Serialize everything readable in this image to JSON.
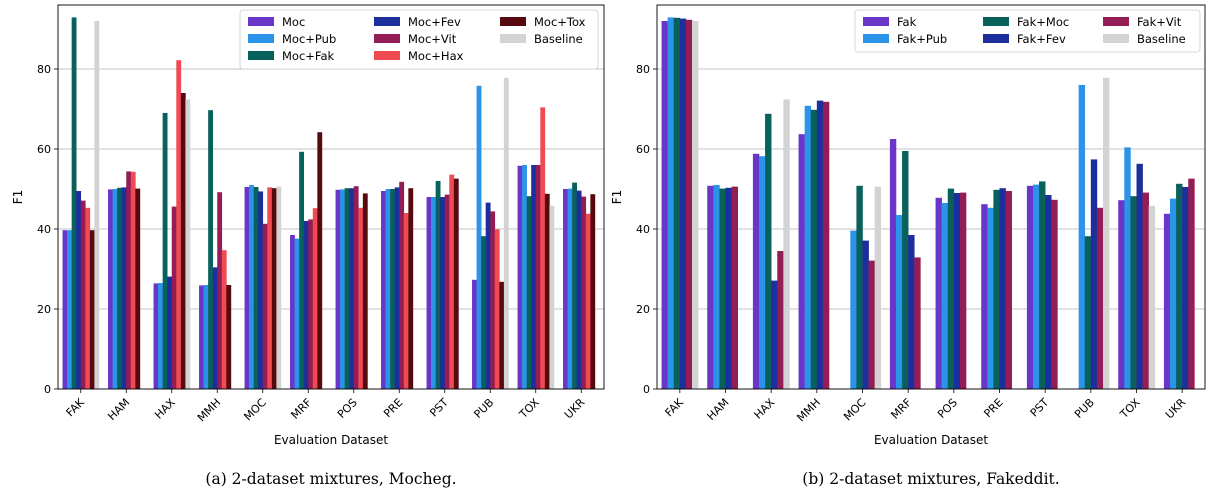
{
  "colors": {
    "Moc": "#6a35c9",
    "Moc+Pub": "#2b93e8",
    "Moc+Fak": "#08615a",
    "Moc+Fev": "#1c2f9d",
    "Moc+Vit": "#941d55",
    "Moc+Hax": "#f04b53",
    "Moc+Tox": "#560a0f",
    "Baseline": "#d3d3d3",
    "Fak": "#6a35c9",
    "Fak+Pub": "#2b93e8",
    "Fak+Moc": "#08615a",
    "Fak+Fev": "#1c2f9d",
    "Fak+Vit": "#941d55"
  },
  "chart_data": [
    {
      "type": "bar",
      "title": "",
      "caption": "(a) 2-dataset mixtures, Mocheg.",
      "xlabel": "Evaluation Dataset",
      "ylabel": "F1",
      "ylim": [
        0,
        96
      ],
      "yticks": [
        0,
        20,
        40,
        60,
        80
      ],
      "grid": "horizontal",
      "legend_position": "top-right",
      "legend_columns": 3,
      "categories": [
        "FAK",
        "HAM",
        "HAX",
        "MMH",
        "MOC",
        "MRF",
        "POS",
        "PRE",
        "PST",
        "PUB",
        "TOX",
        "UKR"
      ],
      "series": [
        {
          "name": "Moc",
          "values": [
            39.7,
            49.9,
            26.4,
            25.9,
            50.5,
            38.5,
            49.8,
            49.5,
            48.0,
            27.3,
            55.8,
            50.0
          ]
        },
        {
          "name": "Moc+Pub",
          "values": [
            39.7,
            50.0,
            26.5,
            26.0,
            51.0,
            37.6,
            49.9,
            50.0,
            48.0,
            75.8,
            56.0,
            50.1
          ]
        },
        {
          "name": "Moc+Fak",
          "values": [
            92.9,
            50.3,
            69.0,
            69.7,
            50.5,
            59.3,
            50.2,
            50.0,
            52.0,
            38.2,
            48.2,
            51.6
          ]
        },
        {
          "name": "Moc+Fev",
          "values": [
            49.5,
            50.4,
            28.1,
            30.4,
            49.4,
            42.0,
            50.2,
            50.4,
            48.0,
            46.6,
            56.0,
            49.6
          ]
        },
        {
          "name": "Moc+Vit",
          "values": [
            47.1,
            54.4,
            45.6,
            49.2,
            41.3,
            42.4,
            50.7,
            51.8,
            48.6,
            44.4,
            56.0,
            48.1
          ]
        },
        {
          "name": "Moc+Hax",
          "values": [
            45.3,
            54.3,
            82.2,
            34.7,
            50.4,
            45.2,
            45.3,
            44.0,
            53.6,
            39.9,
            70.4,
            43.8
          ]
        },
        {
          "name": "Moc+Tox",
          "values": [
            39.7,
            50.1,
            74.0,
            26.0,
            50.2,
            64.2,
            48.9,
            50.2,
            52.6,
            26.8,
            48.8,
            48.7
          ]
        },
        {
          "name": "Baseline",
          "values": [
            92.0,
            null,
            72.4,
            null,
            50.6,
            null,
            null,
            null,
            null,
            77.8,
            45.8,
            null
          ]
        }
      ]
    },
    {
      "type": "bar",
      "title": "",
      "caption": "(b) 2-dataset mixtures, Fakeddit.",
      "xlabel": "Evaluation Dataset",
      "ylabel": "F1",
      "ylim": [
        0,
        96
      ],
      "yticks": [
        0,
        20,
        40,
        60,
        80
      ],
      "grid": "horizontal",
      "legend_position": "top-right",
      "legend_columns": 3,
      "categories": [
        "FAK",
        "HAM",
        "HAX",
        "MMH",
        "MOC",
        "MRF",
        "POS",
        "PRE",
        "PST",
        "PUB",
        "TOX",
        "UKR"
      ],
      "series": [
        {
          "name": "Fak",
          "values": [
            92.0,
            50.8,
            58.8,
            63.7,
            null,
            62.5,
            47.8,
            46.2,
            50.8,
            null,
            47.2,
            43.8
          ]
        },
        {
          "name": "Fak+Pub",
          "values": [
            92.9,
            51.0,
            58.2,
            70.8,
            39.6,
            43.5,
            46.5,
            45.3,
            51.1,
            76.0,
            60.4,
            47.6
          ]
        },
        {
          "name": "Fak+Moc",
          "values": [
            92.8,
            50.1,
            68.8,
            69.8,
            50.8,
            59.5,
            50.1,
            49.8,
            51.9,
            38.2,
            48.2,
            51.3
          ]
        },
        {
          "name": "Fak+Fev",
          "values": [
            92.6,
            50.3,
            27.1,
            72.1,
            37.1,
            38.5,
            49.0,
            50.2,
            48.5,
            57.4,
            56.3,
            50.5
          ]
        },
        {
          "name": "Fak+Vit",
          "values": [
            92.3,
            50.6,
            34.5,
            71.8,
            32.1,
            32.9,
            49.1,
            49.5,
            47.3,
            45.3,
            49.1,
            52.6
          ]
        },
        {
          "name": "Baseline",
          "values": [
            92.0,
            null,
            72.4,
            null,
            50.6,
            null,
            null,
            null,
            null,
            77.8,
            45.8,
            null
          ]
        }
      ]
    }
  ]
}
